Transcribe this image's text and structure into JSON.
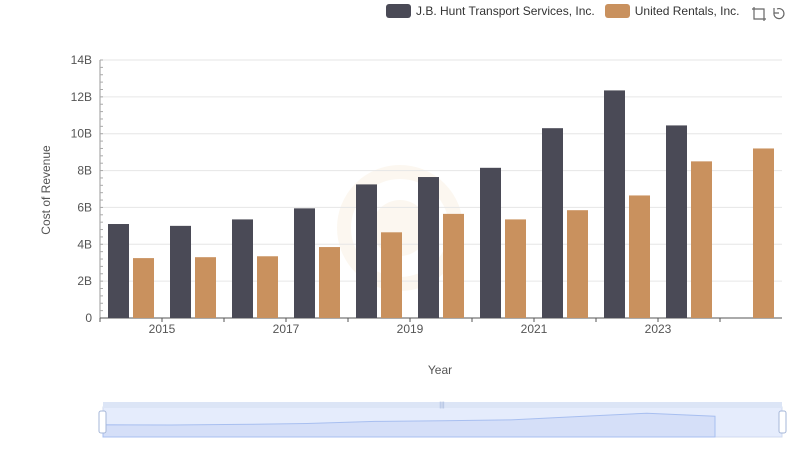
{
  "legend": {
    "items": [
      {
        "label": "J.B. Hunt Transport Services, Inc.",
        "color": "#4a4a56"
      },
      {
        "label": "United Rentals, Inc.",
        "color": "#c9915e"
      }
    ]
  },
  "toolbox": {
    "icons": [
      "zoom-icon",
      "restore-icon"
    ]
  },
  "chart_data": {
    "type": "bar",
    "categories": [
      "2014",
      "2015",
      "2016",
      "2017",
      "2018",
      "2019",
      "2020",
      "2021",
      "2022",
      "2023",
      "2024"
    ],
    "x_tick_labels": [
      "2015",
      "2017",
      "2019",
      "2021",
      "2023"
    ],
    "xlabel": "Year",
    "ylabel": "Cost of Revenue",
    "ylim": [
      0,
      14000000000
    ],
    "y_ticks": [
      {
        "value": 0,
        "label": "0"
      },
      {
        "value": 2000000000,
        "label": "2B"
      },
      {
        "value": 4000000000,
        "label": "4B"
      },
      {
        "value": 6000000000,
        "label": "6B"
      },
      {
        "value": 8000000000,
        "label": "8B"
      },
      {
        "value": 10000000000,
        "label": "10B"
      },
      {
        "value": 12000000000,
        "label": "12B"
      },
      {
        "value": 14000000000,
        "label": "14B"
      }
    ],
    "grid": true,
    "legend_position": "top-right",
    "series": [
      {
        "name": "J.B. Hunt Transport Services, Inc.",
        "color": "#4a4a56",
        "values": [
          5100000000,
          5000000000,
          5350000000,
          5950000000,
          7250000000,
          7650000000,
          8150000000,
          10300000000,
          12350000000,
          10450000000,
          null
        ]
      },
      {
        "name": "United Rentals, Inc.",
        "color": "#c9915e",
        "values": [
          3250000000,
          3300000000,
          3350000000,
          3850000000,
          4650000000,
          5650000000,
          5350000000,
          5850000000,
          6650000000,
          8500000000,
          9200000000
        ]
      }
    ]
  }
}
